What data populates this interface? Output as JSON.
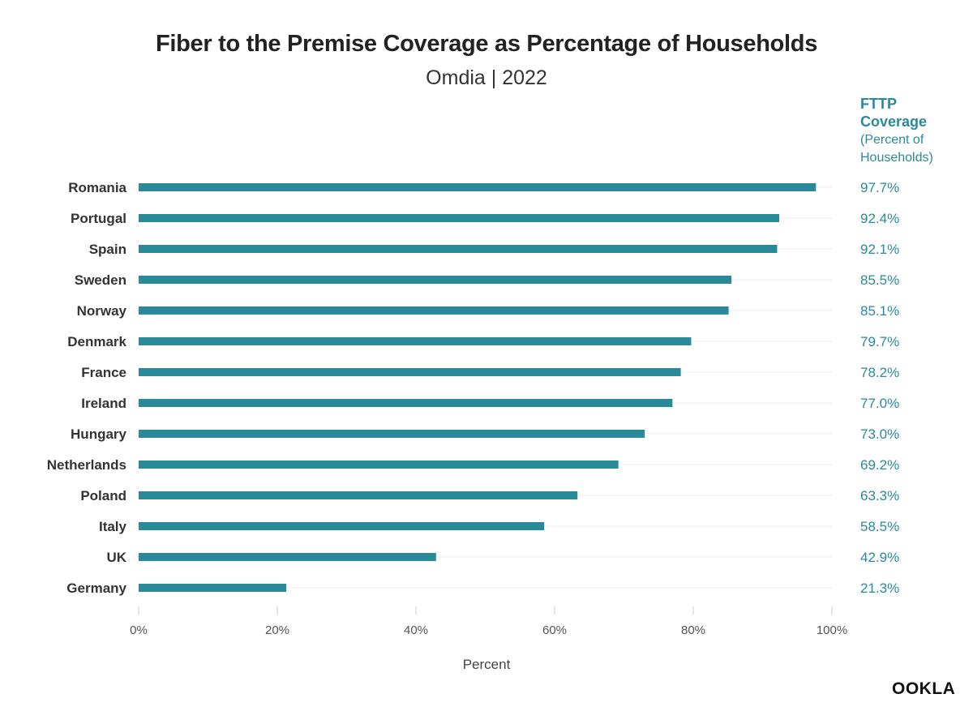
{
  "chart_data": {
    "type": "bar",
    "orientation": "horizontal",
    "title": "Fiber to the Premise Coverage as Percentage of Households",
    "subtitle": "Omdia | 2022",
    "categories": [
      "Romania",
      "Portugal",
      "Spain",
      "Sweden",
      "Norway",
      "Denmark",
      "France",
      "Ireland",
      "Hungary",
      "Netherlands",
      "Poland",
      "Italy",
      "UK",
      "Germany"
    ],
    "values": [
      97.7,
      92.4,
      92.1,
      85.5,
      85.1,
      79.7,
      78.2,
      77.0,
      73.0,
      69.2,
      63.3,
      58.5,
      42.9,
      21.3
    ],
    "value_labels": [
      "97.7%",
      "92.4%",
      "92.1%",
      "85.5%",
      "85.1%",
      "79.7%",
      "78.2%",
      "77.0%",
      "73.0%",
      "69.2%",
      "63.3%",
      "58.5%",
      "42.9%",
      "21.3%"
    ],
    "xlabel": "Percent",
    "ylabel": "",
    "xlim": [
      0,
      100
    ],
    "x_ticks": [
      0,
      20,
      40,
      60,
      80,
      100
    ],
    "x_tick_labels": [
      "0%",
      "20%",
      "40%",
      "60%",
      "80%",
      "100%"
    ],
    "legend": {
      "heading": "FTTP Coverage",
      "subheading": "(Percent of Households)"
    },
    "bar_color": "#2a8a9a",
    "label_color": "#2a8a9a"
  },
  "brand": {
    "logo_text": "OOKLA"
  }
}
